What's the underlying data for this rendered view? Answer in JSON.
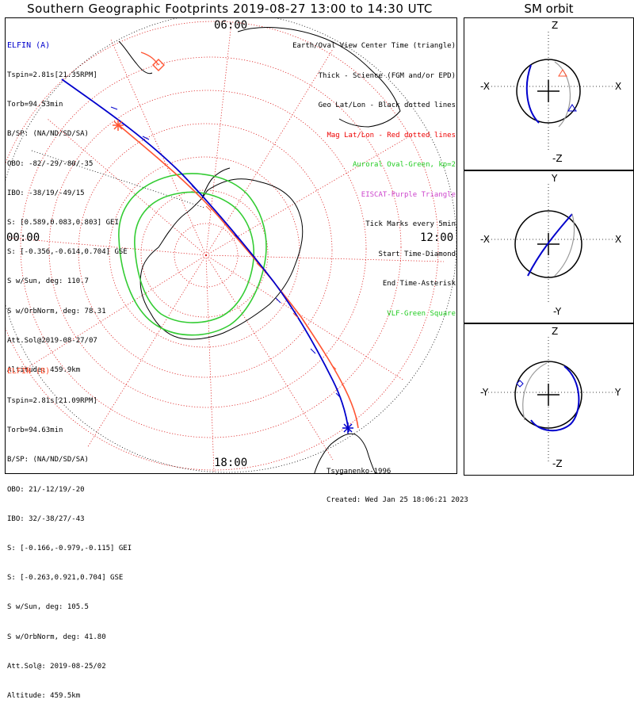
{
  "title": "Southern Geographic Footprints 2019-08-27 13:00 to 14:30 UTC",
  "orbit_panel_title": "SM orbit",
  "clock_labels": {
    "top": "06:00",
    "left": "00:00",
    "right": "12:00",
    "bottom": "18:00"
  },
  "elfin_a": {
    "name": "ELFIN (A)",
    "lines": [
      "Tspin=2.81s[21.35RPM]",
      "Torb=94.53min",
      "B/SP: (NA/ND/SD/SA)",
      "OBO: -82/-29/-80/-35",
      "IBO: -38/19/-49/15",
      "S: [0.589,0.083,0.803] GEI",
      "S: [-0.356,-0.614,0.704] GSE",
      "S w/Sun, deg: 110.7",
      "S w/OrbNorm, deg: 78.31",
      "Att.Sol@2019-08-27/07",
      "Altitude: 459.9km"
    ],
    "color": "#0000cc"
  },
  "elfin_b": {
    "name": "ELFIN (B)",
    "lines": [
      "Tspin=2.81s[21.09RPM]",
      "Torb=94.63min",
      "B/SP: (NA/ND/SD/SA)",
      "OBO: 21/-12/19/-20",
      "IBO: 32/-38/27/-43",
      "S: [-0.166,-0.979,-0.115] GEI",
      "S: [-0.263,0.921,0.704] GSE",
      "S w/Sun, deg: 105.5",
      "S w/OrbNorm, deg: 41.80",
      "Att.Sol@: 2019-08-25/02",
      "Altitude: 459.5km"
    ],
    "color": "#ff4a2a"
  },
  "legend": [
    {
      "text": "Earth/Oval View Center Time (triangle)",
      "color": "#000000"
    },
    {
      "text": "Thick - Science (FGM and/or EPD)",
      "color": "#000000"
    },
    {
      "text": "Geo Lat/Lon - Black dotted lines",
      "color": "#000000"
    },
    {
      "text": "Mag Lat/Lon - Red dotted lines",
      "color": "#ee0000"
    },
    {
      "text": "Auroral Oval-Green, kp=2",
      "color": "#22cc22"
    },
    {
      "text": "EISCAT-Purple Triangle",
      "color": "#cc44cc"
    },
    {
      "text": "Tick Marks every 5min",
      "color": "#000000"
    },
    {
      "text": "Start Time-Diamond",
      "color": "#000000"
    },
    {
      "text": "End Time-Asterisk",
      "color": "#000000"
    },
    {
      "text": "VLF-Green Square",
      "color": "#22cc22"
    }
  ],
  "footer": {
    "model": "Tsyganenko-1996",
    "created": "Created: Wed Jan 25 18:06:21 2023"
  },
  "orbit_panels": [
    {
      "top_label": "Z",
      "bottom_label": "-Z",
      "left_label": "-X",
      "right_label": "X"
    },
    {
      "top_label": "Y",
      "bottom_label": "-Y",
      "left_label": "-X",
      "right_label": "X"
    },
    {
      "top_label": "Z",
      "bottom_label": "-Z",
      "left_label": "-Y",
      "right_label": "Y"
    }
  ]
}
